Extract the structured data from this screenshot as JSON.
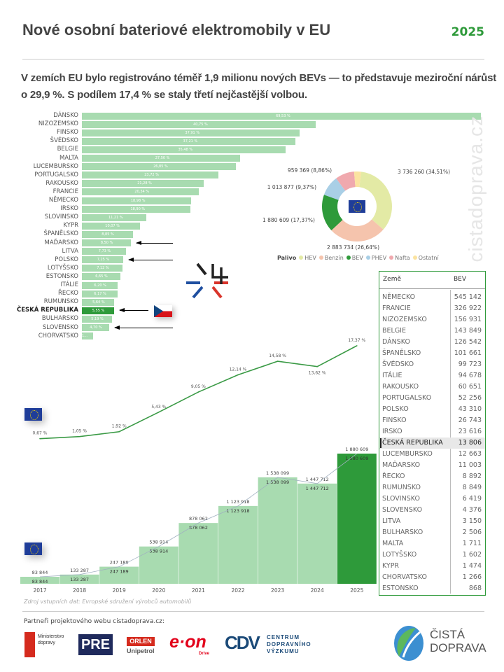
{
  "header": {
    "title": "Nové osobní bateriové elektromobily v EU",
    "year": "2025"
  },
  "subtitle": "V zemích EU bylo registrováno téměř 1,9 milionu nových BEVs — to představuje meziroční nárůst o 29,9 %. S podílem 17,4 % se staly třetí nejčastější volbou.",
  "watermark": "cistadoprava.cz",
  "highlight_color": "#2e9a3a",
  "chart_data": [
    {
      "type": "bar",
      "orientation": "horizontal",
      "unit": "%",
      "categories": [
        "DÁNSKO",
        "NIZOZEMSKO",
        "FINSKO",
        "ŠVÉDSKO",
        "BELGIE",
        "MALTA",
        "LUCEMBURSKO",
        "PORTUGALSKO",
        "RAKOUSKO",
        "FRANCIE",
        "NĚMECKO",
        "IRSKO",
        "SLOVINSKO",
        "KYPR",
        "ŠPANĚLSKO",
        "MAĎARSKO",
        "LITVA",
        "POLSKO",
        "LOTYŠSKO",
        "ESTONSKO",
        "ITÁLIE",
        "ŘECKO",
        "RUMUNSKO",
        "ČESKÁ REPUBLIKA",
        "BULHARSKO",
        "SLOVENSKO",
        "CHORVATSKO"
      ],
      "values": [
        69.53,
        40.75,
        37.91,
        37.21,
        35.48,
        27.5,
        26.85,
        23.72,
        21.28,
        20.34,
        18.98,
        18.9,
        11.21,
        10.07,
        8.85,
        8.5,
        7.73,
        7.25,
        7.12,
        6.65,
        6.2,
        6.17,
        5.64,
        5.55,
        5.19,
        4.7,
        1.9
      ],
      "labels": [
        "69,53 %",
        "40,75 %",
        "37,91 %",
        "37,21 %",
        "35,48 %",
        "27,50 %",
        "26,85 %",
        "23,72 %",
        "21,28 %",
        "20,34 %",
        "18,98 %",
        "18,90 %",
        "11,21 %",
        "10,07 %",
        "8,85 %",
        "8,50 %",
        "7,73 %",
        "7,25 %",
        "7,12 %",
        "6,65 %",
        "6,20 %",
        "6,17 %",
        "5,64 %",
        "5,55 %",
        "5,19 %",
        "4,70 %",
        "1..."
      ],
      "highlight": "ČESKÁ REPUBLIKA",
      "arrows": [
        "MAĎARSKO",
        "POLSKO",
        "ČESKÁ REPUBLIKA",
        "SLOVENSKO"
      ],
      "color": "#a8dbb0"
    },
    {
      "type": "pie",
      "donut": true,
      "legend_title": "Palivo",
      "legend_placement": "bottom",
      "slices": [
        {
          "name": "HEV",
          "value": 3736260,
          "label": "3 736 260 (34,51%)",
          "color": "#e3eaa5"
        },
        {
          "name": "Benzín",
          "value": 2883734,
          "label": "2 883 734 (26,64%)",
          "color": "#f5c4ad"
        },
        {
          "name": "BEV",
          "value": 1880609,
          "label": "1 880 609 (17,37%)",
          "color": "#2e9a3a"
        },
        {
          "name": "PHEV",
          "value": 1013877,
          "label": "1 013 877 (9,37%)",
          "color": "#a9cfe6"
        },
        {
          "name": "Nafta",
          "value": 959369,
          "label": "959 369 (8,86%)",
          "color": "#f0a9ae"
        },
        {
          "name": "Ostatní",
          "value": 350000,
          "label": "",
          "color": "#fbe3a0"
        }
      ]
    },
    {
      "type": "line",
      "unit": "%",
      "x": [
        "2017",
        "2018",
        "2019",
        "2020",
        "2021",
        "2022",
        "2023",
        "2024",
        "2025"
      ],
      "values": [
        0.67,
        1.05,
        1.92,
        5.43,
        9.05,
        12.14,
        14.58,
        13.62,
        17.37
      ],
      "labels": [
        "0,67 %",
        "1,05 %",
        "1,92 %",
        "5,43 %",
        "9,05 %",
        "12,14 %",
        "14,58 %",
        "13,62 %",
        "17,37 %"
      ],
      "color": "#3a9a45"
    },
    {
      "type": "bar",
      "categories": [
        "2017",
        "2018",
        "2019",
        "2020",
        "2021",
        "2022",
        "2023",
        "2024",
        "2025"
      ],
      "values": [
        83844,
        133287,
        247189,
        538914,
        878062,
        1123918,
        1538099,
        1447712,
        1880609
      ],
      "labels": [
        "83 844",
        "133 287",
        "247 189",
        "538 914",
        "878 062",
        "1 123 918",
        "1 538 099",
        "1 447 712",
        "1 880 609"
      ],
      "color": "#a8dbb0",
      "highlight_color": "#2e9a3a",
      "highlight": "2025"
    },
    {
      "type": "table",
      "columns": [
        "Země",
        "BEV"
      ],
      "rows": [
        [
          "NĚMECKO",
          "545 142"
        ],
        [
          "FRANCIE",
          "326 922"
        ],
        [
          "NIZOZEMSKO",
          "156 931"
        ],
        [
          "BELGIE",
          "143 849"
        ],
        [
          "DÁNSKO",
          "126 542"
        ],
        [
          "ŠPANĚLSKO",
          "101 661"
        ],
        [
          "ŠVÉDSKO",
          "99 723"
        ],
        [
          "ITÁLIE",
          "94 678"
        ],
        [
          "RAKOUSKO",
          "60 651"
        ],
        [
          "PORTUGALSKO",
          "52 256"
        ],
        [
          "POLSKO",
          "43 310"
        ],
        [
          "FINSKO",
          "26 743"
        ],
        [
          "IRSKO",
          "23 616"
        ],
        [
          "ČESKÁ REPUBLIKA",
          "13 806"
        ],
        [
          "LUCEMBURSKO",
          "12 663"
        ],
        [
          "MAĎARSKO",
          "11 003"
        ],
        [
          "ŘECKO",
          "8 892"
        ],
        [
          "RUMUNSKO",
          "8 849"
        ],
        [
          "SLOVINSKO",
          "6 419"
        ],
        [
          "SLOVENSKO",
          "4 376"
        ],
        [
          "LITVA",
          "3 150"
        ],
        [
          "BULHARSKO",
          "2 506"
        ],
        [
          "MALTA",
          "1 711"
        ],
        [
          "LOTYŠSKO",
          "1 602"
        ],
        [
          "KYPR",
          "1 474"
        ],
        [
          "CHORVATSKO",
          "1 266"
        ],
        [
          "ESTONSKO",
          "868"
        ]
      ],
      "highlight": "ČESKÁ REPUBLIKA"
    }
  ],
  "footer": {
    "source": "Zdroj vstupních dat: Evropské sdružení výrobců automobilů",
    "partners_label": "Partneři projektového webu cistadoprava.cz:",
    "logos": {
      "md": "Ministerstvo dopravy",
      "pre": "PRE",
      "orlen": "ORLEN",
      "unipetrol": "Unipetrol",
      "eon": "e·on",
      "eon_sub": "Drive",
      "cdv1": "CENTRUM",
      "cdv2": "DOPRAVNÍHO",
      "cdv3": "VÝZKUMU",
      "cdv_mark": "CDV",
      "cd1": "ČISTÁ",
      "cd2": "DOPRAVA"
    }
  }
}
